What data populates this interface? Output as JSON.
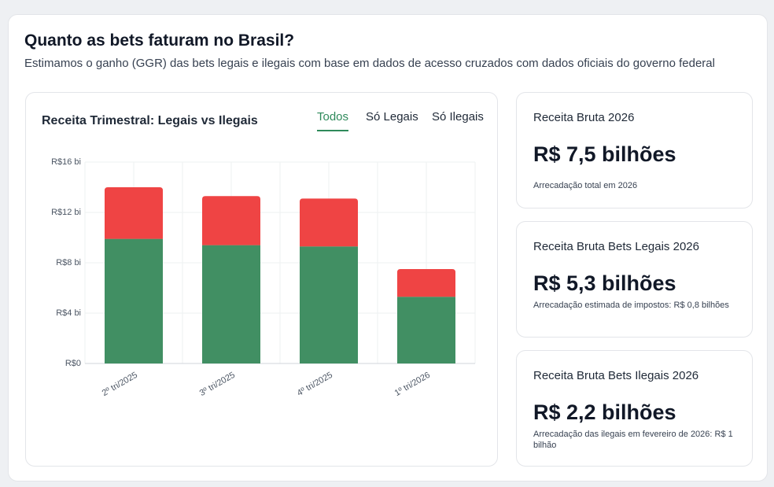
{
  "header": {
    "title": "Quanto as bets faturam no Brasil?",
    "subtitle": "Estimamos o ganho (GGR) das bets legais e ilegais com base em dados de acesso cruzados com dados oficiais do governo federal"
  },
  "tabs": [
    "Todos",
    "Só Legais",
    "Só Ilegais"
  ],
  "chart_data": {
    "type": "stacked_bar",
    "title": "Receita Trimestral: Legais vs Ilegais",
    "categories": [
      "2º tri/2025",
      "3º tri/2025",
      "4º tri/2025",
      "1º tri/2026"
    ],
    "series": [
      {
        "color": "#418f63",
        "values": [
          9.9,
          9.4,
          9.3,
          5.3
        ]
      },
      {
        "color": "#ef4444",
        "values": [
          4.1,
          3.9,
          3.8,
          2.2
        ]
      }
    ],
    "ylim": [
      0,
      16
    ],
    "yticks": [
      {
        "value": 0,
        "label": "R$0"
      },
      {
        "value": 4,
        "label": "R$4 bi"
      },
      {
        "value": 8,
        "label": "R$8 bi"
      },
      {
        "value": 12,
        "label": "R$12 bi"
      },
      {
        "value": 16,
        "label": "R$16 bi"
      }
    ],
    "grid": true
  },
  "cards": [
    {
      "title": "Receita Bruta 2026",
      "value": "R$ 7,5 bilhões",
      "note": "Arrecadação total em 2026"
    },
    {
      "title": "Receita Bruta Bets Legais 2026",
      "value": "R$ 5,3 bilhões",
      "note": "Arrecadação estimada de impostos: R$ 0,8 bilhões"
    },
    {
      "title": "Receita Bruta Bets Ilegais 2026",
      "value": "R$ 2,2 bilhões",
      "note": "Arrecadação das ilegais em fevereiro de 2026: R$ 1 bilhão"
    }
  ]
}
